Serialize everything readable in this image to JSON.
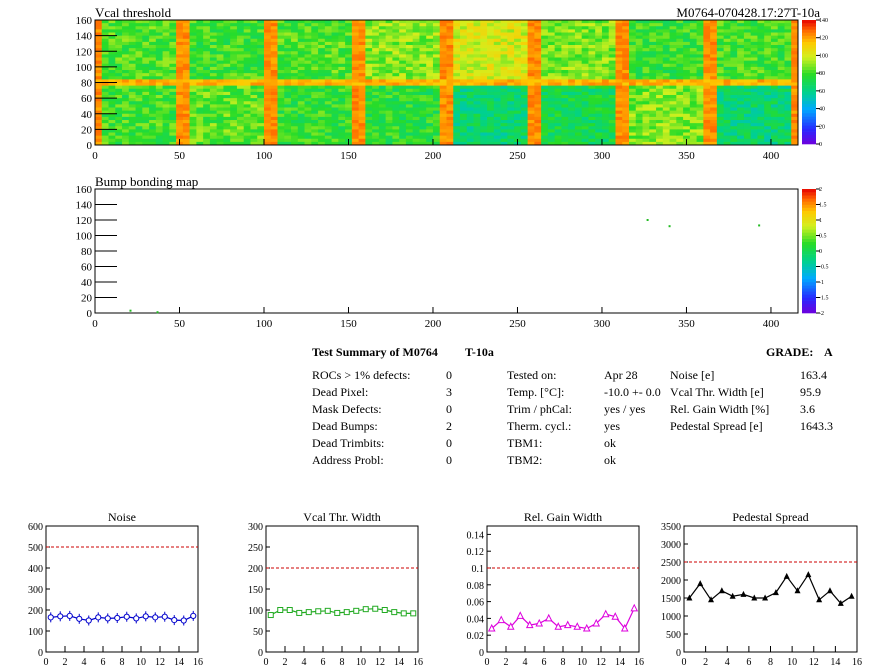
{
  "module": {
    "id": "M0764-070428.17:27T-10a"
  },
  "summary": {
    "title": "Test Summary of M0764",
    "test": "T-10a",
    "grade_label": "GRADE:",
    "grade": "A",
    "defects": [
      {
        "label": "ROCs > 1% defects:",
        "value": "0"
      },
      {
        "label": "Dead Pixel:",
        "value": "3"
      },
      {
        "label": "Mask Defects:",
        "value": "0"
      },
      {
        "label": "Dead Bumps:",
        "value": "2"
      },
      {
        "label": "Dead Trimbits:",
        "value": "0"
      },
      {
        "label": "Address Probl:",
        "value": "0"
      }
    ],
    "conditions": [
      {
        "label": "Tested on:",
        "value": "Apr 28"
      },
      {
        "label": "Temp. [°C]:",
        "value": "-10.0 +- 0.0"
      },
      {
        "label": "Trim / phCal:",
        "value": "yes / yes"
      },
      {
        "label": "Therm. cycl.:",
        "value": "yes"
      },
      {
        "label": "TBM1:",
        "value": "ok"
      },
      {
        "label": "TBM2:",
        "value": "ok"
      }
    ],
    "results": [
      {
        "label": "Noise [e]",
        "value": "163.4"
      },
      {
        "label": "Vcal Thr. Width [e]",
        "value": "95.9"
      },
      {
        "label": "Rel. Gain Width [%]",
        "value": "3.6"
      },
      {
        "label": "Pedestal Spread [e]",
        "value": "1643.3"
      }
    ]
  },
  "colors": {
    "noise": "#0000cc",
    "vcal": "#22aa22",
    "gain": "#dd00dd",
    "pedestal": "#000000",
    "limit": "#cc0000"
  },
  "chart_data": [
    {
      "type": "heatmap",
      "title": "Vcal threshold",
      "xlim": [
        0,
        416
      ],
      "ylim": [
        0,
        160
      ],
      "xticks": [
        0,
        50,
        100,
        150,
        200,
        250,
        300,
        350,
        400
      ],
      "yticks": [
        0,
        20,
        40,
        60,
        80,
        100,
        120,
        140,
        160
      ],
      "zlim": [
        0,
        140
      ],
      "zticks": [
        0,
        20,
        40,
        60,
        80,
        100,
        120,
        140
      ],
      "roc_columns": 8,
      "roc_rows": 2,
      "roc_mean_threshold": [
        [
          82,
          80,
          82,
          90,
          100,
          88,
          78,
          80
        ],
        [
          80,
          84,
          78,
          76,
          64,
          70,
          88,
          64
        ]
      ]
    },
    {
      "type": "heatmap",
      "title": "Bump bonding map",
      "xlim": [
        0,
        416
      ],
      "ylim": [
        0,
        160
      ],
      "xticks": [
        0,
        50,
        100,
        150,
        200,
        250,
        300,
        350,
        400
      ],
      "yticks": [
        0,
        20,
        40,
        60,
        80,
        100,
        120,
        140,
        160
      ],
      "zlim": [
        -2,
        2
      ],
      "zticks": [
        2,
        1.5,
        1,
        0.5,
        0,
        -0.5,
        -1,
        -1.5,
        -2
      ],
      "points": [
        [
          21,
          3
        ],
        [
          37,
          1
        ],
        [
          327,
          120
        ],
        [
          340,
          112
        ],
        [
          393,
          113
        ]
      ]
    },
    {
      "type": "line",
      "title": "Noise",
      "xlim": [
        0,
        16
      ],
      "ylim": [
        0,
        600
      ],
      "xticks": [
        0,
        2,
        4,
        6,
        8,
        10,
        12,
        14,
        16
      ],
      "yticks": [
        0,
        100,
        200,
        300,
        400,
        500,
        600
      ],
      "limit": 500,
      "marker": "open-circle",
      "x": [
        0.5,
        1.5,
        2.5,
        3.5,
        4.5,
        5.5,
        6.5,
        7.5,
        8.5,
        9.5,
        10.5,
        11.5,
        12.5,
        13.5,
        14.5,
        15.5
      ],
      "values": [
        165,
        170,
        172,
        158,
        150,
        165,
        160,
        162,
        168,
        160,
        170,
        165,
        168,
        152,
        150,
        172
      ]
    },
    {
      "type": "line",
      "title": "Vcal Thr. Width",
      "xlim": [
        0,
        16
      ],
      "ylim": [
        0,
        300
      ],
      "xticks": [
        0,
        2,
        4,
        6,
        8,
        10,
        12,
        14,
        16
      ],
      "yticks": [
        0,
        50,
        100,
        150,
        200,
        250,
        300
      ],
      "limit": 200,
      "marker": "open-square",
      "x": [
        0.5,
        1.5,
        2.5,
        3.5,
        4.5,
        5.5,
        6.5,
        7.5,
        8.5,
        9.5,
        10.5,
        11.5,
        12.5,
        13.5,
        14.5,
        15.5
      ],
      "values": [
        88,
        100,
        100,
        93,
        95,
        97,
        98,
        93,
        95,
        98,
        102,
        103,
        100,
        95,
        92,
        92
      ]
    },
    {
      "type": "line",
      "title": "Rel. Gain Width",
      "xlim": [
        0,
        16
      ],
      "ylim": [
        0,
        0.15
      ],
      "xticks": [
        0,
        2,
        4,
        6,
        8,
        10,
        12,
        14,
        16
      ],
      "yticks": [
        0,
        0.02,
        0.04,
        0.06,
        0.08,
        0.1,
        0.12,
        0.14
      ],
      "limit": 0.1,
      "marker": "open-triangle",
      "x": [
        0.5,
        1.5,
        2.5,
        3.5,
        4.5,
        5.5,
        6.5,
        7.5,
        8.5,
        9.5,
        10.5,
        11.5,
        12.5,
        13.5,
        14.5,
        15.5
      ],
      "values": [
        0.028,
        0.038,
        0.03,
        0.043,
        0.032,
        0.034,
        0.04,
        0.03,
        0.032,
        0.03,
        0.028,
        0.034,
        0.045,
        0.042,
        0.028,
        0.052
      ]
    },
    {
      "type": "line",
      "title": "Pedestal Spread",
      "xlim": [
        0,
        16
      ],
      "ylim": [
        0,
        3500
      ],
      "xticks": [
        0,
        2,
        4,
        6,
        8,
        10,
        12,
        14,
        16
      ],
      "yticks": [
        0,
        500,
        1000,
        1500,
        2000,
        2500,
        3000,
        3500
      ],
      "limit": 2500,
      "marker": "filled-triangle",
      "x": [
        0.5,
        1.5,
        2.5,
        3.5,
        4.5,
        5.5,
        6.5,
        7.5,
        8.5,
        9.5,
        10.5,
        11.5,
        12.5,
        13.5,
        14.5,
        15.5
      ],
      "values": [
        1500,
        1900,
        1450,
        1700,
        1550,
        1600,
        1500,
        1500,
        1650,
        2100,
        1700,
        2150,
        1450,
        1700,
        1350,
        1550
      ]
    }
  ]
}
